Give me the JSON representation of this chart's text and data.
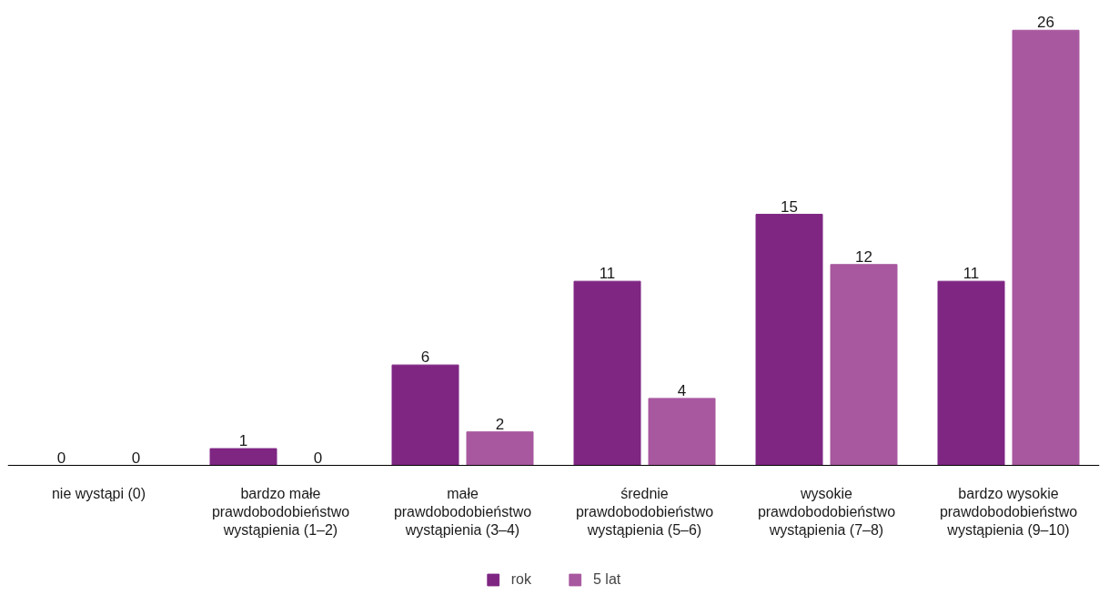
{
  "chart_data": {
    "type": "bar",
    "categories": [
      "nie wystąpi (0)",
      "bardzo małe prawdobodobieństwo wystąpienia (1–2)",
      "małe prawdobodobieństwo wystąpienia (3–4)",
      "średnie prawdobodobieństwo wystąpienia (5–6)",
      "wysokie prawdobodobieństwo wystąpienia (7–8)",
      "bardzo wysokie prawdobodobieństwo wystąpienia (9–10)"
    ],
    "series": [
      {
        "name": "rok",
        "color": "#7f2683",
        "values": [
          0,
          1,
          6,
          11,
          15,
          11
        ]
      },
      {
        "name": "5 lat",
        "color": "#a8589f",
        "values": [
          0,
          0,
          2,
          4,
          12,
          26
        ]
      }
    ],
    "data_labels": true,
    "legend": "bottom",
    "tick_labels": "x"
  }
}
